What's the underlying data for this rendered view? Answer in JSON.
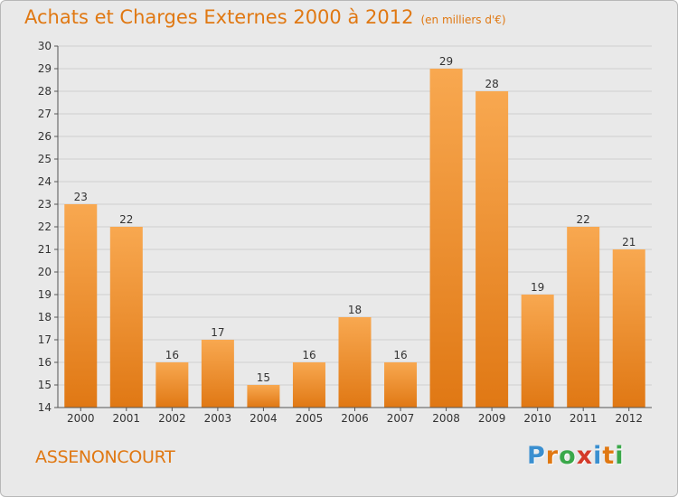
{
  "title": "Achats et Charges Externes 2000 à 2012",
  "subtitle": "(en milliers d'€)",
  "town": "ASSENONCOURT",
  "logo": {
    "text": "Proxiti",
    "colors": [
      "#3a8fd0",
      "#e07812",
      "#3aa84a",
      "#d43a2a",
      "#3a8fd0",
      "#e07812",
      "#3aa84a"
    ]
  },
  "colors": {
    "bar_light": "#f8a850",
    "bar_dark": "#e07814",
    "grid": "#cfcfcf",
    "axis": "#555555",
    "accent": "#e07812"
  },
  "chart_data": {
    "type": "bar",
    "title": "Achats et Charges Externes 2000 à 2012",
    "subtitle": "(en milliers d'€)",
    "categories": [
      "2000",
      "2001",
      "2002",
      "2003",
      "2004",
      "2005",
      "2006",
      "2007",
      "2008",
      "2009",
      "2010",
      "2011",
      "2012"
    ],
    "values": [
      23,
      22,
      16,
      17,
      15,
      16,
      18,
      16,
      29,
      28,
      19,
      22,
      21
    ],
    "ylim": [
      14,
      30
    ],
    "yticks": [
      14,
      15,
      16,
      17,
      18,
      19,
      20,
      21,
      22,
      23,
      24,
      25,
      26,
      27,
      28,
      29,
      30
    ],
    "grid": true,
    "legend": "none"
  }
}
